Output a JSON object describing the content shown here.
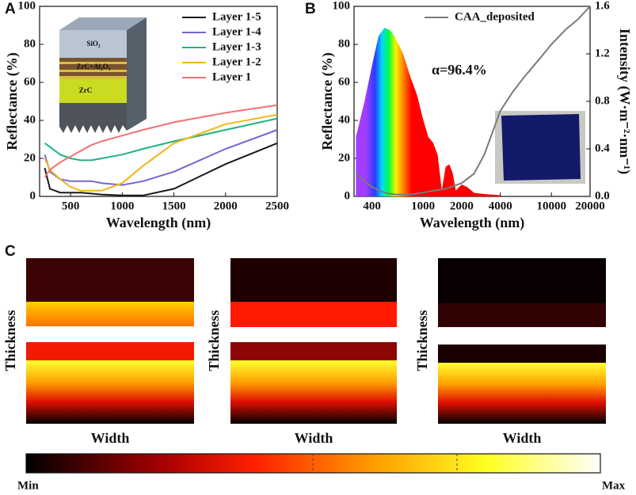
{
  "chart_data": [
    {
      "type": "line",
      "panel_label": "A",
      "xlabel": "Wavelength (nm)",
      "ylabel": "Reflectance (%)",
      "xlim": [
        200,
        2500
      ],
      "xticks": [
        500,
        1000,
        1500,
        2000,
        2500
      ],
      "ylim": [
        0,
        100
      ],
      "yticks": [
        0,
        20,
        40,
        60,
        80,
        100
      ],
      "legend": "upper right",
      "inset_labels": [
        "SiO₂",
        "ZrC+Al₂O₃",
        "ZrC"
      ],
      "x": [
        250,
        300,
        400,
        500,
        600,
        700,
        800,
        1000,
        1200,
        1500,
        2000,
        2500
      ],
      "series": [
        {
          "name": "Layer 1-5",
          "color": "#1a1a1a",
          "values": [
            15,
            4,
            2,
            2,
            2,
            1.5,
            1,
            0.5,
            0.5,
            4,
            17,
            28
          ]
        },
        {
          "name": "Layer 1-4",
          "color": "#7466d4",
          "values": [
            22,
            13,
            9,
            8,
            8,
            8,
            7,
            6,
            8,
            13,
            25,
            35
          ]
        },
        {
          "name": "Layer 1-3",
          "color": "#1db57a",
          "values": [
            28,
            26,
            22,
            20,
            19,
            19,
            20,
            22,
            25,
            29,
            35,
            41
          ]
        },
        {
          "name": "Layer 1-2",
          "color": "#f4b41a",
          "values": [
            20,
            14,
            9,
            5,
            3,
            3,
            3,
            7,
            16,
            28,
            38,
            43
          ]
        },
        {
          "name": "Layer 1",
          "color": "#f07272",
          "values": [
            10,
            14,
            18,
            21,
            24,
            27,
            29,
            32,
            35,
            39,
            44,
            48
          ]
        }
      ]
    },
    {
      "type": "line",
      "panel_label": "B",
      "xlabel": "Wavelength (nm)",
      "ylabel": "Reflectance (%)",
      "y2label": "Intensity (W·m⁻²·nm⁻¹)",
      "xscale": "log",
      "annotation": "α=96.4%",
      "xlim": [
        290,
        20000
      ],
      "xticks": [
        400,
        1000,
        2000,
        4000,
        10000,
        20000
      ],
      "ylim": [
        0,
        100
      ],
      "yticks": [
        0,
        20,
        40,
        60,
        80,
        100
      ],
      "y2lim": [
        0,
        1.6
      ],
      "y2ticks": [
        {
          "value": 0,
          "label": "0.0"
        },
        0.4,
        0.8,
        1.2,
        1.6
      ],
      "legend": "upper center",
      "series": [
        {
          "color": "spectrum",
          "axis": "y2",
          "style": "area",
          "x": [
            300,
            350,
            400,
            450,
            500,
            550,
            600,
            700,
            800,
            900,
            1000,
            1100,
            1200,
            1300,
            1400,
            1500,
            1600,
            1700,
            1800,
            2000,
            2200,
            2500,
            3000,
            4000
          ],
          "values": [
            0.5,
            0.8,
            1.1,
            1.35,
            1.42,
            1.4,
            1.35,
            1.2,
            1.0,
            0.85,
            0.65,
            0.5,
            0.45,
            0.35,
            0.05,
            0.25,
            0.27,
            0.2,
            0.05,
            0.1,
            0.08,
            0.03,
            0.02,
            0.01
          ]
        },
        {
          "name": "CAA_deposited",
          "color": "#7a7a7a",
          "x": [
            300,
            350,
            400,
            500,
            600,
            800,
            1000,
            1200,
            1500,
            2000,
            2500,
            3000,
            4000,
            5000,
            6000,
            8000,
            10000,
            13000,
            16000,
            20000
          ],
          "values": [
            12,
            8,
            5,
            2,
            1,
            1,
            2,
            3,
            4,
            7,
            12,
            22,
            45,
            55,
            62,
            72,
            80,
            88,
            93,
            100
          ]
        }
      ]
    }
  ],
  "panel_c": {
    "label": "C",
    "heatmaps": [
      {
        "ylabel": "Thickness",
        "xlabel": "Width"
      },
      {
        "ylabel": "Thickness",
        "xlabel": "Width"
      },
      {
        "ylabel": "Thickness",
        "xlabel": "Width"
      }
    ],
    "colorbar": {
      "min_label": "Min",
      "max_label": "Max"
    }
  }
}
